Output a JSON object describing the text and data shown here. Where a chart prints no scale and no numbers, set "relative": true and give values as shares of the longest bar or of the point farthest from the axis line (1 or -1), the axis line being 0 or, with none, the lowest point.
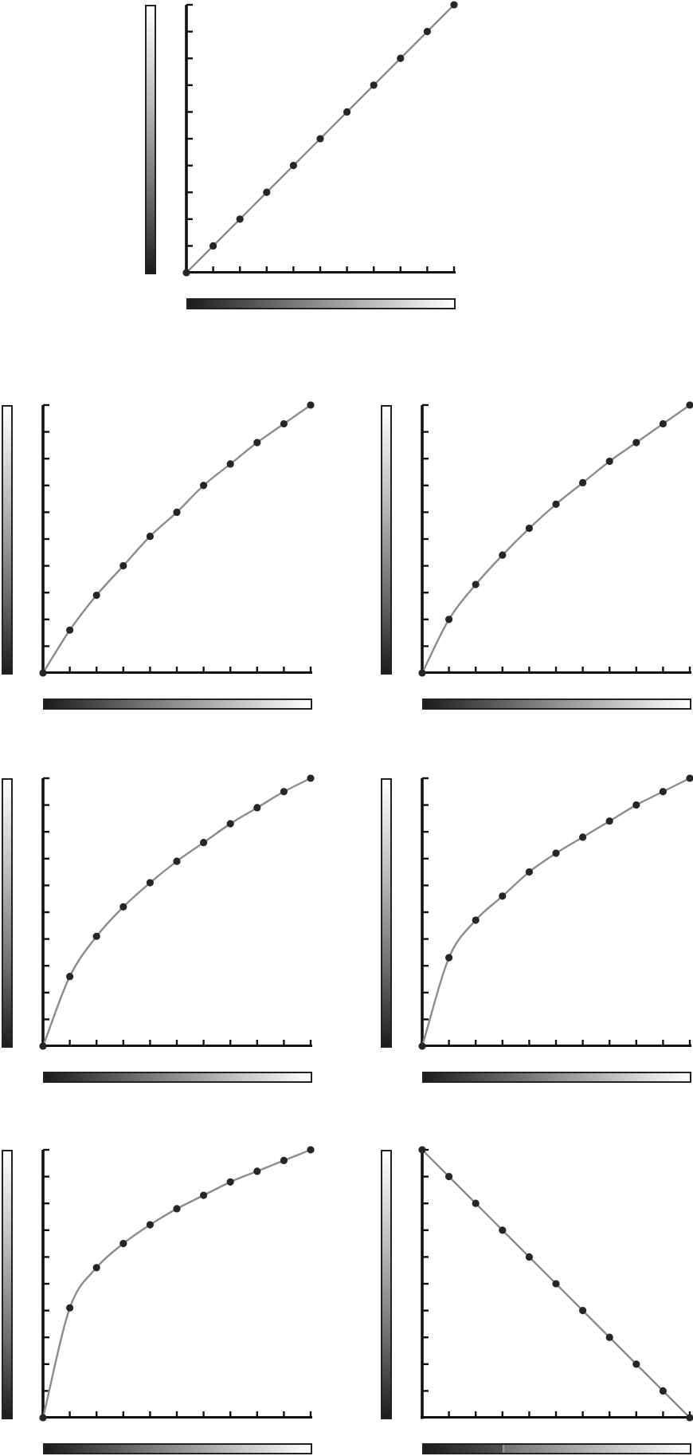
{
  "chart_data": [
    {
      "type": "line",
      "categories": [
        null,
        null,
        null,
        null,
        null,
        null,
        null,
        null,
        null,
        null,
        null
      ],
      "relative": true,
      "marker": "circle",
      "series": [
        {
          "color": "#8c8c8c",
          "values": [
            0,
            0.1,
            0.2,
            0.3,
            0.4,
            0.5,
            0.6,
            0.7,
            0.8,
            0.9,
            1.0
          ]
        }
      ]
    },
    {
      "type": "line",
      "categories": [
        null,
        null,
        null,
        null,
        null,
        null,
        null,
        null,
        null,
        null,
        null
      ],
      "relative": true,
      "marker": "circle",
      "series": [
        {
          "color": "#8c8c8c",
          "values": [
            0,
            0.16,
            0.29,
            0.4,
            0.51,
            0.6,
            0.7,
            0.78,
            0.86,
            0.93,
            1.0
          ]
        }
      ]
    },
    {
      "type": "line",
      "categories": [
        null,
        null,
        null,
        null,
        null,
        null,
        null,
        null,
        null,
        null,
        null
      ],
      "relative": true,
      "marker": "circle",
      "series": [
        {
          "color": "#8c8c8c",
          "values": [
            0,
            0.2,
            0.33,
            0.44,
            0.54,
            0.63,
            0.71,
            0.79,
            0.86,
            0.93,
            1.0
          ]
        }
      ]
    },
    {
      "type": "line",
      "categories": [
        null,
        null,
        null,
        null,
        null,
        null,
        null,
        null,
        null,
        null,
        null
      ],
      "relative": true,
      "marker": "circle",
      "series": [
        {
          "color": "#8c8c8c",
          "values": [
            0,
            0.26,
            0.41,
            0.52,
            0.61,
            0.69,
            0.76,
            0.83,
            0.89,
            0.95,
            1.0
          ]
        }
      ]
    },
    {
      "type": "line",
      "categories": [
        null,
        null,
        null,
        null,
        null,
        null,
        null,
        null,
        null,
        null,
        null
      ],
      "relative": true,
      "marker": "circle",
      "series": [
        {
          "color": "#8c8c8c",
          "values": [
            0,
            0.33,
            0.47,
            0.56,
            0.65,
            0.72,
            0.78,
            0.84,
            0.9,
            0.95,
            1.0
          ]
        }
      ]
    },
    {
      "type": "line",
      "categories": [
        null,
        null,
        null,
        null,
        null,
        null,
        null,
        null,
        null,
        null,
        null
      ],
      "relative": true,
      "marker": "circle",
      "series": [
        {
          "color": "#8c8c8c",
          "values": [
            0,
            0.41,
            0.56,
            0.65,
            0.72,
            0.78,
            0.83,
            0.88,
            0.92,
            0.96,
            1.0
          ]
        }
      ]
    },
    {
      "type": "line",
      "categories": [
        null,
        null,
        null,
        null,
        null,
        null,
        null,
        null,
        null,
        null,
        null
      ],
      "relative": true,
      "marker": "circle",
      "series": [
        {
          "color": "#8c8c8c",
          "values": [
            1.0,
            0.9,
            0.8,
            0.7,
            0.6,
            0.5,
            0.4,
            0.3,
            0.2,
            0.1,
            0
          ]
        }
      ]
    }
  ]
}
